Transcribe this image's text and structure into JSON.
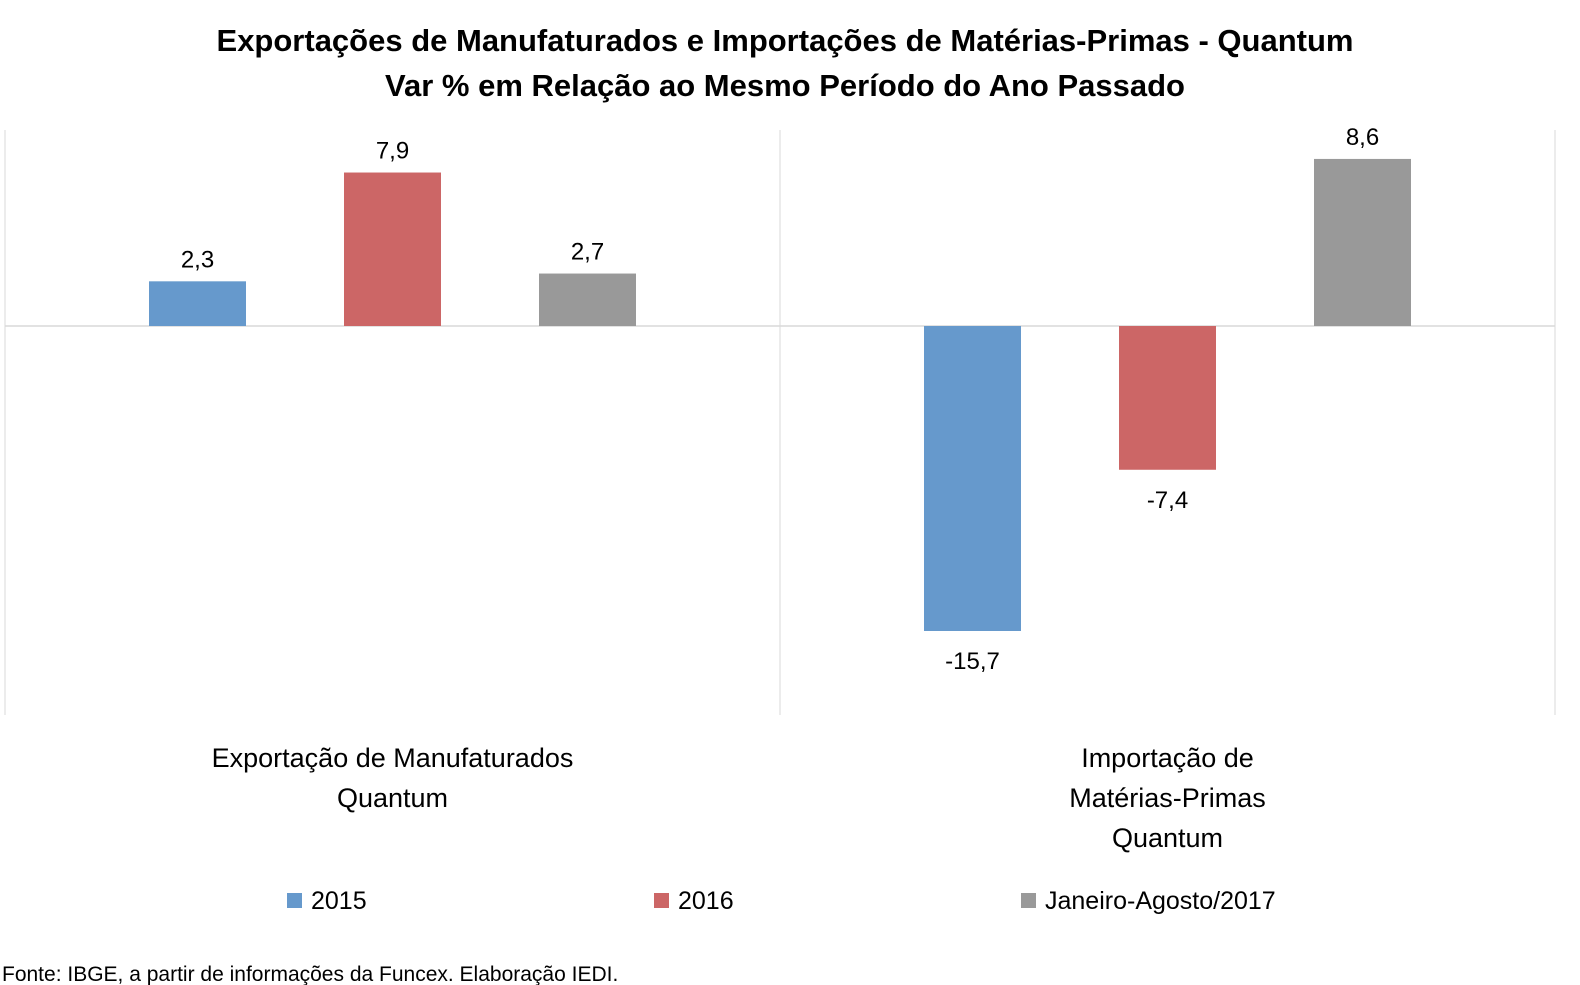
{
  "chart_data": {
    "type": "bar",
    "title": "Exportações de Manufaturados e Importações de Matérias-Primas - Quantum",
    "subtitle": "Var % em Relação ao Mesmo Período do Ano Passado",
    "categories": [
      [
        "Exportação de Manufaturados",
        "Quantum"
      ],
      [
        "Importação de",
        "Matérias-Primas",
        "Quantum"
      ]
    ],
    "series": [
      {
        "name": "2015",
        "color": "#6699cc",
        "values": [
          2.3,
          -15.7
        ],
        "labels": [
          "2,3",
          "-15,7"
        ]
      },
      {
        "name": "2016",
        "color": "#cc6666",
        "values": [
          7.9,
          -7.4
        ],
        "labels": [
          "7,9",
          "-7,4"
        ]
      },
      {
        "name": "Janeiro-Agosto/2017",
        "color": "#999999",
        "values": [
          2.7,
          8.6
        ],
        "labels": [
          "2,7",
          "8,6"
        ]
      }
    ],
    "ylim": [
      -20,
      10
    ],
    "legend_position": "bottom",
    "grid": false
  },
  "source": "Fonte: IBGE, a partir de  informações da Funcex. Elaboração IEDI."
}
